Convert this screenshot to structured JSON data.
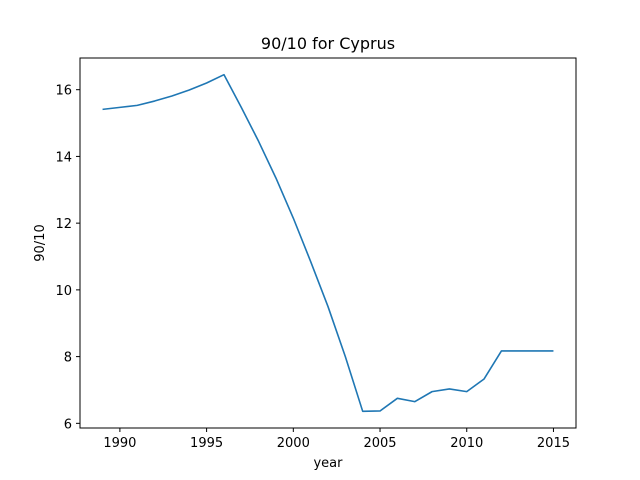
{
  "chart_data": {
    "type": "line",
    "title": "90/10 for Cyprus",
    "xlabel": "year",
    "ylabel": "90/10",
    "xlim": [
      1987.7,
      2016.3
    ],
    "ylim": [
      5.86,
      16.95
    ],
    "x_ticks": [
      1990,
      1995,
      2000,
      2005,
      2010,
      2015
    ],
    "y_ticks": [
      6,
      8,
      10,
      12,
      14,
      16
    ],
    "grid": false,
    "legend": "none",
    "series": [
      {
        "color": "#1f77b4",
        "x": [
          1989,
          1990,
          1991,
          1992,
          1993,
          1994,
          1995,
          1996,
          1997,
          1998,
          1999,
          2000,
          2001,
          2002,
          2003,
          2004,
          2005,
          2006,
          2007,
          2008,
          2009,
          2010,
          2011,
          2012,
          2013,
          2014,
          2015
        ],
        "y": [
          15.41,
          15.47,
          15.53,
          15.66,
          15.81,
          15.99,
          16.2,
          16.45,
          15.47,
          14.45,
          13.35,
          12.15,
          10.85,
          9.5,
          8.0,
          6.36,
          6.37,
          6.75,
          6.65,
          6.95,
          7.03,
          6.95,
          7.33,
          8.17,
          8.17,
          8.17,
          8.17
        ]
      }
    ]
  }
}
